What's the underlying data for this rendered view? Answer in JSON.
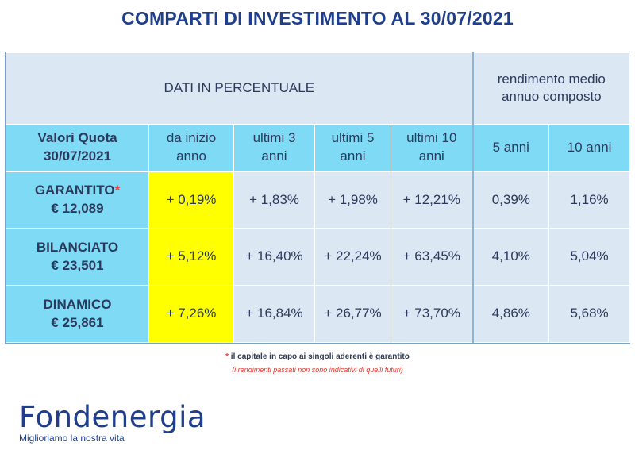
{
  "title": "COMPARTI DI INVESTIMENTO AL 30/07/2021",
  "table": {
    "group_header": "DATI IN PERCENTUALE",
    "rend_header": "rendimento medio annuo composto",
    "quota_header": [
      "Valori Quota",
      "30/07/2021"
    ],
    "col_headers": [
      "da inizio anno",
      "ultimi 3 anni",
      "ultimi 5 anni",
      "ultimi 10 anni",
      "5 anni",
      "10 anni"
    ],
    "rows": [
      {
        "name": "GARANTITO",
        "star": "*",
        "quota": "€ 12,089",
        "values": [
          "+ 0,19%",
          "+ 1,83%",
          "+ 1,98%",
          "+ 12,21%",
          "0,39%",
          "1,16%"
        ]
      },
      {
        "name": "BILANCIATO",
        "star": "",
        "quota": "€ 23,501",
        "values": [
          "+ 5,12%",
          "+ 16,40%",
          "+ 22,24%",
          "+ 63,45%",
          "4,10%",
          "5,04%"
        ]
      },
      {
        "name": "DINAMICO",
        "star": "",
        "quota": "€ 25,861",
        "values": [
          "+ 7,26%",
          "+ 16,84%",
          "+ 26,77%",
          "+ 73,70%",
          "4,86%",
          "5,68%"
        ]
      }
    ]
  },
  "footnote": {
    "star": "*",
    "text": " il capitale in capo ai singoli aderenti è garantito",
    "disclaimer": "(i rendimenti passati non sono indicativi di quelli futuri)"
  },
  "logo": {
    "name": "Fondenergia",
    "tagline": "Miglioriamo la nostra vita"
  },
  "colors": {
    "title": "#1f3f8c",
    "header_cyan": "#7fdaf5",
    "cell_light": "#dbe7f3",
    "highlight": "#ffff00",
    "star_red": "#e8443a"
  }
}
